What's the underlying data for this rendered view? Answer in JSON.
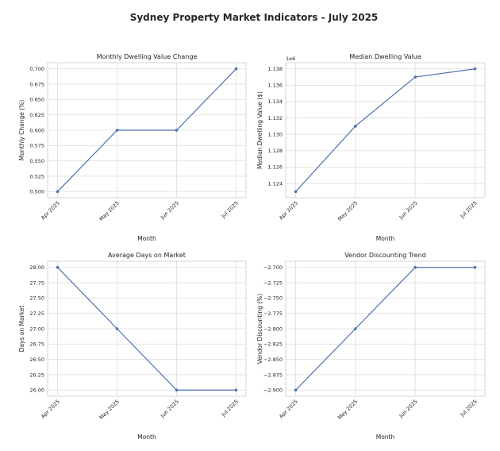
{
  "title": "Sydney Property Market Indicators - July 2025",
  "chart_data": [
    {
      "type": "line",
      "title": "Monthly Dwelling Value Change",
      "xlabel": "Month",
      "ylabel": "Monthly Change (%)",
      "categories": [
        "Apr 2025",
        "May 2025",
        "Jun 2025",
        "Jul 2025"
      ],
      "values": [
        0.5,
        0.6,
        0.6,
        0.7
      ],
      "ylim": [
        0.49,
        0.71
      ],
      "yticks": [
        "0.500",
        "0.525",
        "0.550",
        "0.575",
        "0.600",
        "0.625",
        "0.650",
        "0.675",
        "0.700"
      ],
      "y_offset": "",
      "grid": true,
      "color": "#4c72b0"
    },
    {
      "type": "line",
      "title": "Median Dwelling Value",
      "xlabel": "Month",
      "ylabel": "Median Dwelling Value ($)",
      "categories": [
        "Apr 2025",
        "May 2025",
        "Jun 2025",
        "Jul 2025"
      ],
      "values": [
        1123000,
        1131000,
        1137000,
        1138000
      ],
      "ylim": [
        1122250,
        1138750
      ],
      "yticks": [
        "1.124",
        "1.126",
        "1.128",
        "1.130",
        "1.132",
        "1.134",
        "1.136",
        "1.138"
      ],
      "y_offset": "1e6",
      "grid": true,
      "color": "#4c72b0"
    },
    {
      "type": "line",
      "title": "Average Days on Market",
      "xlabel": "Month",
      "ylabel": "Days on Market",
      "categories": [
        "Apr 2025",
        "May 2025",
        "Jun 2025",
        "Jul 2025"
      ],
      "values": [
        28,
        27,
        26,
        26
      ],
      "ylim": [
        25.9,
        28.1
      ],
      "yticks": [
        "26.00",
        "26.25",
        "26.50",
        "26.75",
        "27.00",
        "27.25",
        "27.50",
        "27.75",
        "28.00"
      ],
      "y_offset": "",
      "grid": true,
      "color": "#4c72b0"
    },
    {
      "type": "line",
      "title": "Vendor Discounting Trend",
      "xlabel": "Month",
      "ylabel": "Vendor Discounting (%)",
      "categories": [
        "Apr 2025",
        "May 2025",
        "Jun 2025",
        "Jul 2025"
      ],
      "values": [
        -2.9,
        -2.8,
        -2.7,
        -2.7
      ],
      "ylim": [
        -2.91,
        -2.69
      ],
      "yticks": [
        "−2.900",
        "−2.875",
        "−2.850",
        "−2.825",
        "−2.800",
        "−2.775",
        "−2.750",
        "−2.725",
        "−2.700"
      ],
      "y_offset": "",
      "grid": true,
      "color": "#4c72b0"
    }
  ]
}
